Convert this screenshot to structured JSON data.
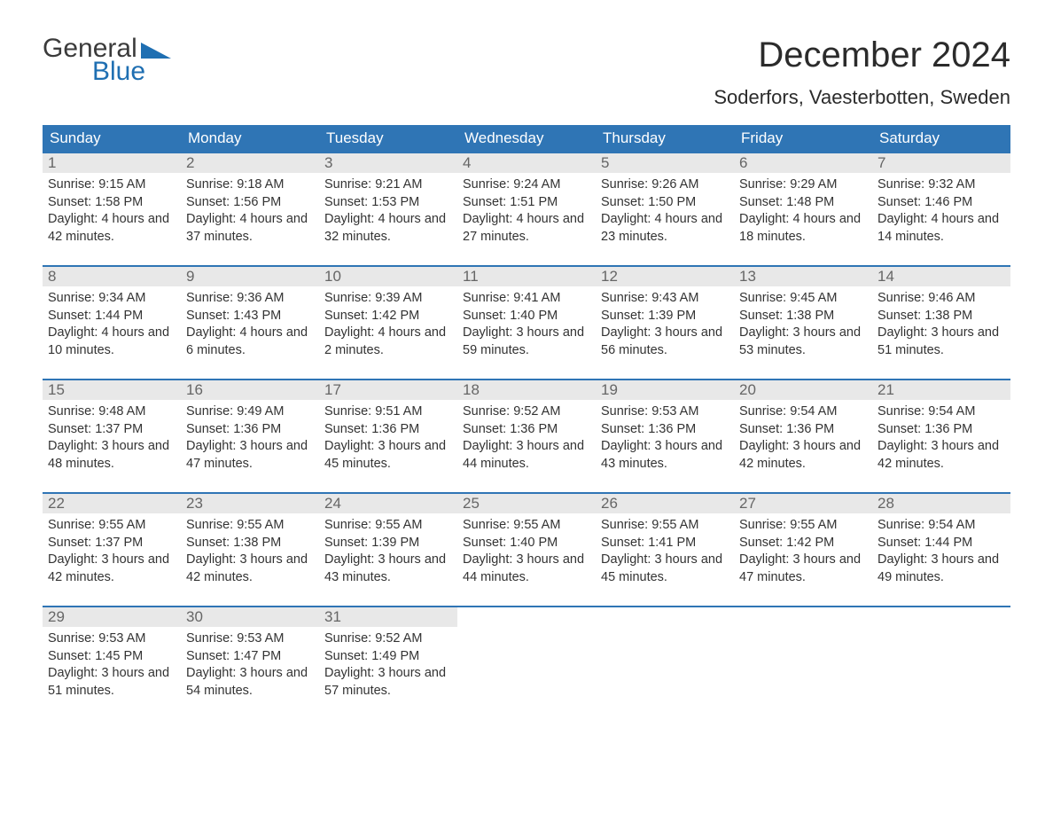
{
  "logo": {
    "word1": "General",
    "word2": "Blue"
  },
  "title": "December 2024",
  "location": "Soderfors, Vaesterbotten, Sweden",
  "header_bg": "#2f75b5",
  "header_fg": "#ffffff",
  "daynum_bg": "#e8e8e8",
  "row_border": "#2f75b5",
  "weekdays": [
    "Sunday",
    "Monday",
    "Tuesday",
    "Wednesday",
    "Thursday",
    "Friday",
    "Saturday"
  ],
  "labels": {
    "sunrise": "Sunrise:",
    "sunset": "Sunset:",
    "daylight": "Daylight:"
  },
  "days": [
    {
      "n": 1,
      "sunrise": "9:15 AM",
      "sunset": "1:58 PM",
      "daylight": "4 hours and 42 minutes."
    },
    {
      "n": 2,
      "sunrise": "9:18 AM",
      "sunset": "1:56 PM",
      "daylight": "4 hours and 37 minutes."
    },
    {
      "n": 3,
      "sunrise": "9:21 AM",
      "sunset": "1:53 PM",
      "daylight": "4 hours and 32 minutes."
    },
    {
      "n": 4,
      "sunrise": "9:24 AM",
      "sunset": "1:51 PM",
      "daylight": "4 hours and 27 minutes."
    },
    {
      "n": 5,
      "sunrise": "9:26 AM",
      "sunset": "1:50 PM",
      "daylight": "4 hours and 23 minutes."
    },
    {
      "n": 6,
      "sunrise": "9:29 AM",
      "sunset": "1:48 PM",
      "daylight": "4 hours and 18 minutes."
    },
    {
      "n": 7,
      "sunrise": "9:32 AM",
      "sunset": "1:46 PM",
      "daylight": "4 hours and 14 minutes."
    },
    {
      "n": 8,
      "sunrise": "9:34 AM",
      "sunset": "1:44 PM",
      "daylight": "4 hours and 10 minutes."
    },
    {
      "n": 9,
      "sunrise": "9:36 AM",
      "sunset": "1:43 PM",
      "daylight": "4 hours and 6 minutes."
    },
    {
      "n": 10,
      "sunrise": "9:39 AM",
      "sunset": "1:42 PM",
      "daylight": "4 hours and 2 minutes."
    },
    {
      "n": 11,
      "sunrise": "9:41 AM",
      "sunset": "1:40 PM",
      "daylight": "3 hours and 59 minutes."
    },
    {
      "n": 12,
      "sunrise": "9:43 AM",
      "sunset": "1:39 PM",
      "daylight": "3 hours and 56 minutes."
    },
    {
      "n": 13,
      "sunrise": "9:45 AM",
      "sunset": "1:38 PM",
      "daylight": "3 hours and 53 minutes."
    },
    {
      "n": 14,
      "sunrise": "9:46 AM",
      "sunset": "1:38 PM",
      "daylight": "3 hours and 51 minutes."
    },
    {
      "n": 15,
      "sunrise": "9:48 AM",
      "sunset": "1:37 PM",
      "daylight": "3 hours and 48 minutes."
    },
    {
      "n": 16,
      "sunrise": "9:49 AM",
      "sunset": "1:36 PM",
      "daylight": "3 hours and 47 minutes."
    },
    {
      "n": 17,
      "sunrise": "9:51 AM",
      "sunset": "1:36 PM",
      "daylight": "3 hours and 45 minutes."
    },
    {
      "n": 18,
      "sunrise": "9:52 AM",
      "sunset": "1:36 PM",
      "daylight": "3 hours and 44 minutes."
    },
    {
      "n": 19,
      "sunrise": "9:53 AM",
      "sunset": "1:36 PM",
      "daylight": "3 hours and 43 minutes."
    },
    {
      "n": 20,
      "sunrise": "9:54 AM",
      "sunset": "1:36 PM",
      "daylight": "3 hours and 42 minutes."
    },
    {
      "n": 21,
      "sunrise": "9:54 AM",
      "sunset": "1:36 PM",
      "daylight": "3 hours and 42 minutes."
    },
    {
      "n": 22,
      "sunrise": "9:55 AM",
      "sunset": "1:37 PM",
      "daylight": "3 hours and 42 minutes."
    },
    {
      "n": 23,
      "sunrise": "9:55 AM",
      "sunset": "1:38 PM",
      "daylight": "3 hours and 42 minutes."
    },
    {
      "n": 24,
      "sunrise": "9:55 AM",
      "sunset": "1:39 PM",
      "daylight": "3 hours and 43 minutes."
    },
    {
      "n": 25,
      "sunrise": "9:55 AM",
      "sunset": "1:40 PM",
      "daylight": "3 hours and 44 minutes."
    },
    {
      "n": 26,
      "sunrise": "9:55 AM",
      "sunset": "1:41 PM",
      "daylight": "3 hours and 45 minutes."
    },
    {
      "n": 27,
      "sunrise": "9:55 AM",
      "sunset": "1:42 PM",
      "daylight": "3 hours and 47 minutes."
    },
    {
      "n": 28,
      "sunrise": "9:54 AM",
      "sunset": "1:44 PM",
      "daylight": "3 hours and 49 minutes."
    },
    {
      "n": 29,
      "sunrise": "9:53 AM",
      "sunset": "1:45 PM",
      "daylight": "3 hours and 51 minutes."
    },
    {
      "n": 30,
      "sunrise": "9:53 AM",
      "sunset": "1:47 PM",
      "daylight": "3 hours and 54 minutes."
    },
    {
      "n": 31,
      "sunrise": "9:52 AM",
      "sunset": "1:49 PM",
      "daylight": "3 hours and 57 minutes."
    }
  ],
  "start_weekday": 0,
  "trailing_empty": 4
}
